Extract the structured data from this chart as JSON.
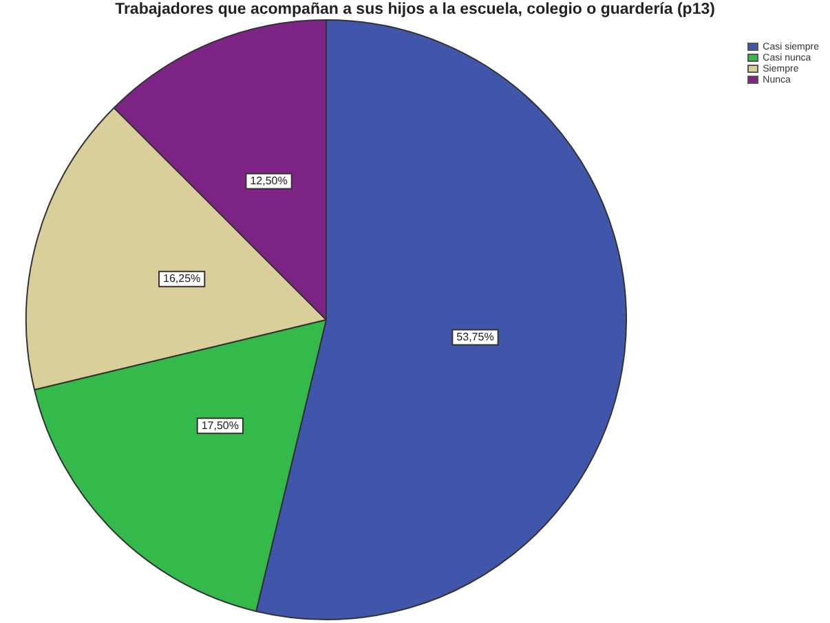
{
  "chart_data": {
    "type": "pie",
    "title": "Trabajadores que acompañan a sus hijos a la escuela, colegio o guardería (p13)",
    "categories": [
      "Casi siempre",
      "Casi nunca",
      "Siempre",
      "Nunca"
    ],
    "values": [
      53.75,
      17.5,
      16.25,
      12.5
    ],
    "value_labels": [
      "53,75%",
      "17,50%",
      "16,25%",
      "12,50%"
    ],
    "colors": [
      "#3f56ab",
      "#34b94b",
      "#d8cf9a",
      "#7e2486"
    ],
    "legend": "top right"
  }
}
